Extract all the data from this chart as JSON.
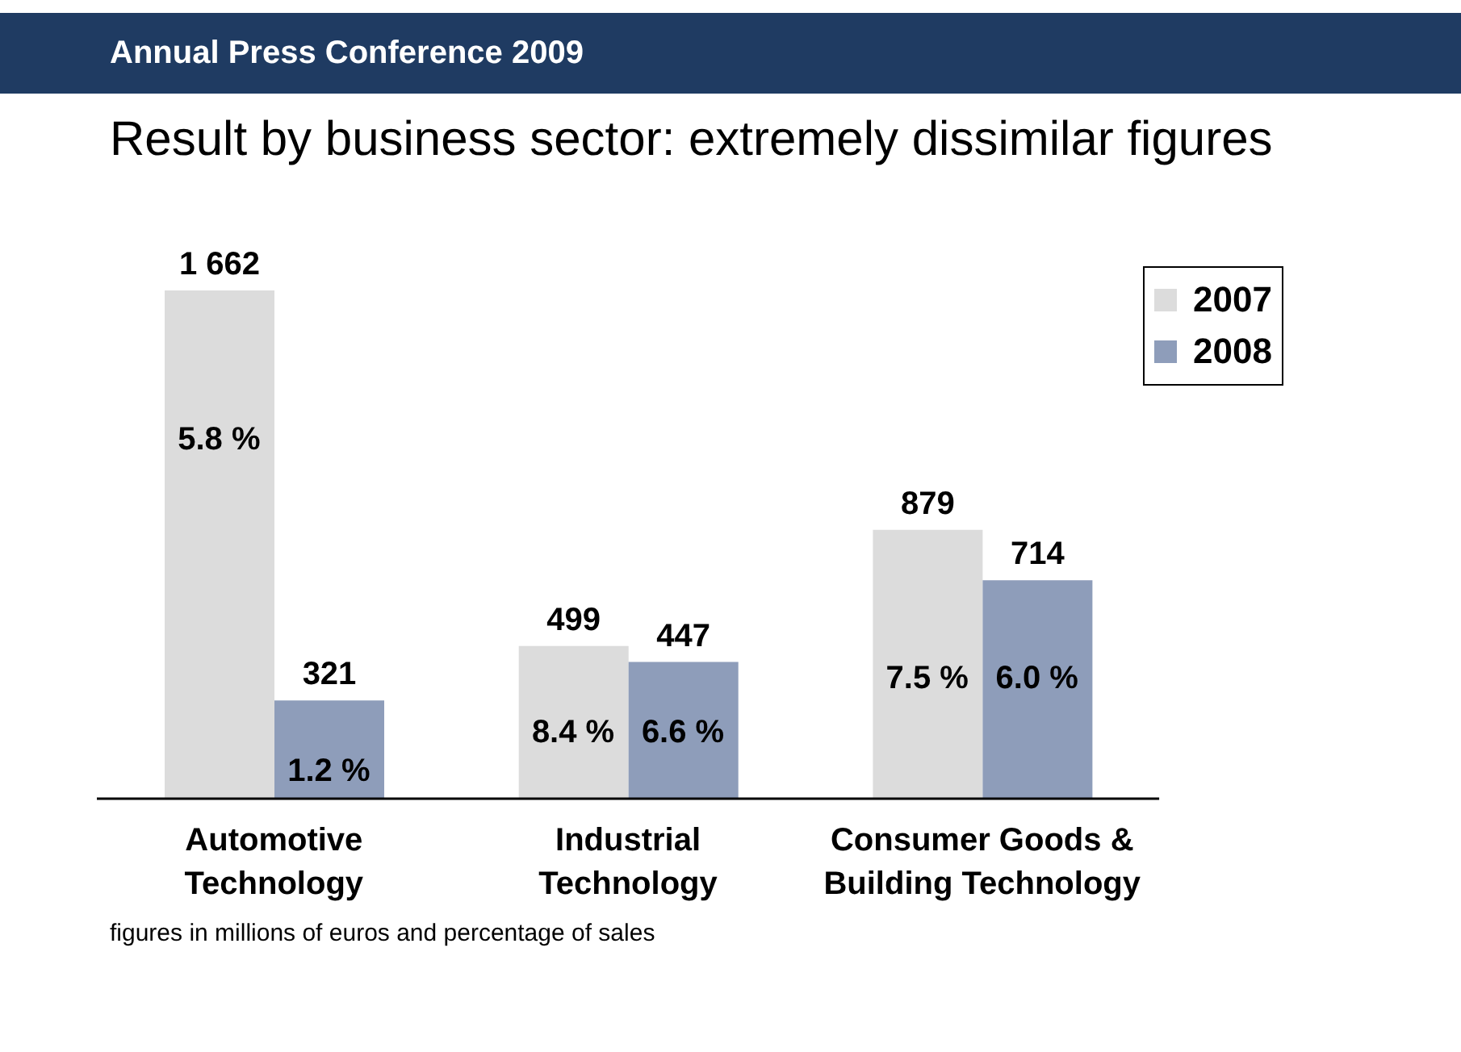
{
  "chart_data": {
    "type": "bar",
    "title": "Annual Press Conference 2009",
    "subtitle": "Result by business sector: extremely dissimilar figures",
    "categories": [
      "Automotive Technology",
      "Industrial Technology",
      "Consumer Goods & Building Technology"
    ],
    "series": [
      {
        "name": "2007",
        "color": "#dcdcdc",
        "values": [
          1662,
          499,
          879
        ],
        "value_labels": [
          "1 662",
          "499",
          "879"
        ]
      },
      {
        "name": "2008",
        "color": "#8e9dba",
        "values": [
          321,
          447,
          714
        ],
        "value_labels": [
          "321",
          "447",
          "714"
        ]
      }
    ],
    "legend": "top right",
    "grid": false,
    "annotations": [
      {
        "text": "5.8 %",
        "x": "Automotive Technology",
        "y": 1175
      },
      {
        "text": "1.2 %",
        "x": "Automotive Technology",
        "y": 89
      },
      {
        "text": "8.4 %",
        "x": "Industrial Technology",
        "y": 216
      },
      {
        "text": "6.6 %",
        "x": "Industrial Technology",
        "y": 216
      },
      {
        "text": "7.5 %",
        "x": "Consumer Goods & Building Technology",
        "y": 393
      },
      {
        "text": "6.0 %",
        "x": "Consumer Goods & Building Technology",
        "y": 393
      },
      "figures in millions of euros and percentage of sales"
    ]
  }
}
